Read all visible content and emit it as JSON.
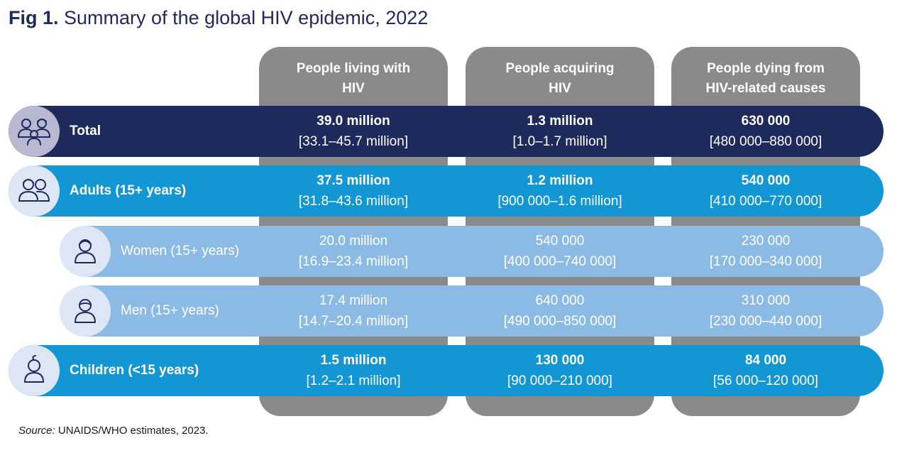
{
  "title": {
    "prefix": "Fig 1.",
    "text": "Summary of the global HIV epidemic, 2022"
  },
  "columns": [
    {
      "label": "People living with HIV"
    },
    {
      "label": "People acquiring HIV"
    },
    {
      "label": "People dying from HIV-related causes"
    }
  ],
  "rows": {
    "total": {
      "label": "Total",
      "icon": "family-icon",
      "cells": [
        {
          "value": "39.0 million",
          "range": "[33.1–45.7 million]"
        },
        {
          "value": "1.3 million",
          "range": "[1.0–1.7 million]"
        },
        {
          "value": "630 000",
          "range": "[480 000–880 000]"
        }
      ]
    },
    "adults": {
      "label": "Adults (15+ years)",
      "icon": "adults-icon",
      "cells": [
        {
          "value": "37.5 million",
          "range": "[31.8–43.6 million]"
        },
        {
          "value": "1.2 million",
          "range": "[900 000–1.6 million]"
        },
        {
          "value": "540 000",
          "range": "[410 000–770 000]"
        }
      ]
    },
    "women": {
      "label": "Women (15+ years)",
      "icon": "woman-icon",
      "cells": [
        {
          "value": "20.0 million",
          "range": "[16.9–23.4 million]"
        },
        {
          "value": "540 000",
          "range": "[400 000–740 000]"
        },
        {
          "value": "230 000",
          "range": "[170 000–340 000]"
        }
      ]
    },
    "men": {
      "label": "Men (15+ years)",
      "icon": "man-icon",
      "cells": [
        {
          "value": "17.4 million",
          "range": "[14.7–20.4 million]"
        },
        {
          "value": "640 000",
          "range": "[490 000–850 000]"
        },
        {
          "value": "310 000",
          "range": "[230 000–440 000]"
        }
      ]
    },
    "children": {
      "label": "Children (<15 years)",
      "icon": "child-icon",
      "cells": [
        {
          "value": "1.5 million",
          "range": "[1.2–2.1 million]"
        },
        {
          "value": "130 000",
          "range": "[90 000–210 000]"
        },
        {
          "value": "84 000",
          "range": "[56 000–120 000]"
        }
      ]
    }
  },
  "source": {
    "label": "Source:",
    "text": "UNAIDS/WHO estimates, 2023."
  },
  "colors": {
    "navy": "#1f2a5c",
    "blue": "#1296d4",
    "light_blue": "#8bbbe5",
    "gray": "#8a8a8a"
  }
}
